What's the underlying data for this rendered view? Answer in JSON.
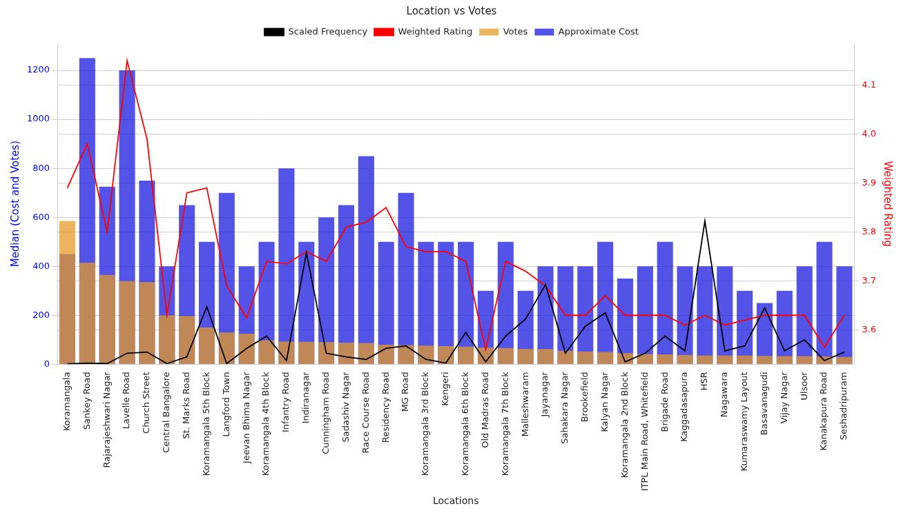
{
  "chart_data": {
    "type": "bar",
    "title": "Location vs Votes",
    "x_label": "Locations",
    "y_label": "Median (Cost and Votes)",
    "y2_label": "Weighted Rating",
    "categories": [
      "Koramangala",
      "Sankey Road",
      "Rajarajeshwari Nagar",
      "Lavelle Road",
      "Church Street",
      "Central Bangalore",
      "St. Marks Road",
      "Koramangala 5th Block",
      "Langford Town",
      "Jeevan Bhima Nagar",
      "Koramangala 4th Block",
      "Infantry Road",
      "Indiranagar",
      "Cunningham Road",
      "Sadashiv Nagar",
      "Race Course Road",
      "Residency Road",
      "MG Road",
      "Koramangala 3rd Block",
      "Kengeri",
      "Koramangala 6th Block",
      "Old Madras Road",
      "Koramangala 7th Block",
      "Malleshwaram",
      "Jayanagar",
      "Sahakara Nagar",
      "Brookefield",
      "Kalyan Nagar",
      "Koramangala 2nd Block",
      "ITPL Main Road, Whitefield",
      "Brigade Road",
      "Kaggadasapura",
      "HSR",
      "Nagawara",
      "Kumaraswamy Layout",
      "Basavanagudi",
      "Vijay Nagar",
      "Ulsoor",
      "Kanakapura Road",
      "Seshadripuram"
    ],
    "series": [
      {
        "name": "Scaled Frequency",
        "type": "line",
        "color": "#000000",
        "values": [
          2,
          5,
          3,
          45,
          50,
          3,
          30,
          235,
          3,
          65,
          115,
          15,
          455,
          45,
          30,
          20,
          65,
          75,
          20,
          5,
          130,
          10,
          115,
          185,
          325,
          45,
          155,
          210,
          10,
          45,
          115,
          55,
          585,
          55,
          75,
          230,
          55,
          100,
          15,
          50
        ]
      },
      {
        "name": "Approximate Cost",
        "type": "bar",
        "color": "#1a1ae0",
        "values": [
          450,
          1250,
          725,
          1200,
          750,
          400,
          650,
          500,
          700,
          400,
          500,
          800,
          500,
          600,
          650,
          850,
          500,
          700,
          500,
          500,
          500,
          300,
          500,
          300,
          400,
          400,
          400,
          500,
          350,
          400,
          500,
          400,
          400,
          400,
          300,
          250,
          300,
          400,
          500,
          400
        ]
      },
      {
        "name": "Votes",
        "type": "bar",
        "color": "#e69b26",
        "values": [
          585,
          415,
          365,
          340,
          335,
          200,
          197,
          150,
          130,
          125,
          98,
          93,
          92,
          90,
          88,
          87,
          80,
          78,
          76,
          74,
          72,
          68,
          66,
          63,
          62,
          55,
          52,
          50,
          45,
          42,
          40,
          38,
          36,
          36,
          36,
          34,
          33,
          33,
          32,
          30
        ]
      },
      {
        "name": "Weighted Rating",
        "type": "line",
        "axis": "y2",
        "color": "#ff0000",
        "values": [
          3.89,
          3.98,
          3.8,
          4.15,
          3.99,
          3.63,
          3.88,
          3.89,
          3.69,
          3.625,
          3.74,
          3.735,
          3.76,
          3.74,
          3.81,
          3.82,
          3.85,
          3.77,
          3.76,
          3.76,
          3.74,
          3.56,
          3.74,
          3.72,
          3.69,
          3.63,
          3.63,
          3.67,
          3.63,
          3.63,
          3.63,
          3.61,
          3.63,
          3.61,
          3.62,
          3.63,
          3.63,
          3.63,
          3.565,
          3.63
        ]
      }
    ],
    "ylim": [
      0,
      1310
    ],
    "yticks": [
      0,
      200,
      400,
      600,
      800,
      1000,
      1200
    ],
    "y2lim": [
      3.53,
      4.185
    ],
    "y2ticks": [
      3.6,
      3.7,
      3.8,
      3.9,
      {
        "value": 4,
        "label": "4.0"
      },
      4.1
    ],
    "grid": true,
    "legend": "top"
  }
}
